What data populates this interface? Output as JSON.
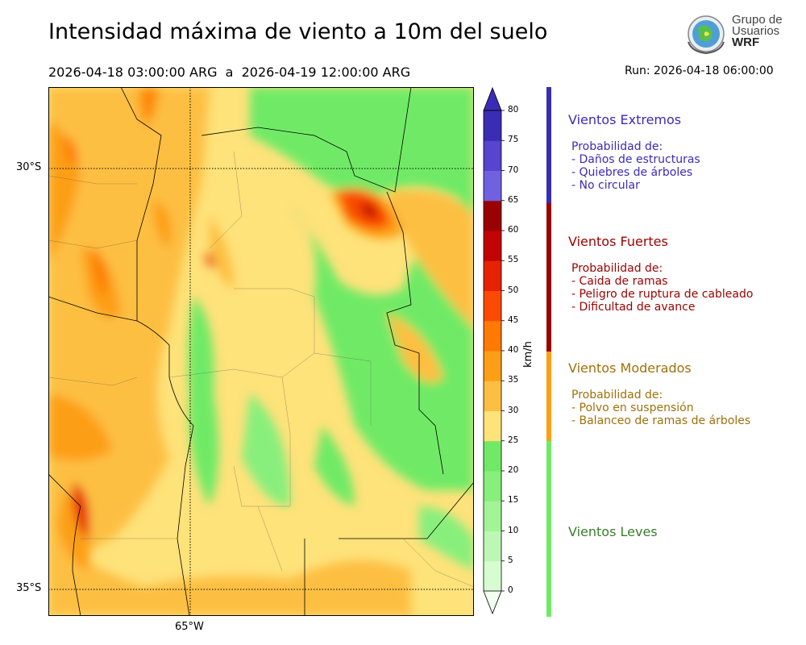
{
  "header": {
    "title": "Intensidad máxima de viento a 10m del suelo",
    "date_range": "2026-04-18 03:00:00 ARG  a  2026-04-19 12:00:00 ARG",
    "run": "Run: 2026-04-18 06:00:00"
  },
  "logo": {
    "line1": "Grupo de",
    "line2": "Usuarios",
    "line3": "WRF"
  },
  "map": {
    "lat_labels": [
      "30°S",
      "35°S"
    ],
    "lon_label": "65°W"
  },
  "colorbar": {
    "unit": "km/h",
    "ticks": [
      "0",
      "5",
      "10",
      "15",
      "20",
      "25",
      "30",
      "35",
      "40",
      "45",
      "50",
      "55",
      "60",
      "65",
      "70",
      "75",
      "80"
    ],
    "colors": [
      "#f2fef0",
      "#d8fcd2",
      "#bcf8b4",
      "#a2f497",
      "#88ef7c",
      "#70ea66",
      "#fee27a",
      "#fdbf43",
      "#fd9f16",
      "#fe7a03",
      "#fb4b02",
      "#e52201",
      "#c10402",
      "#9a0201",
      "#7061e0",
      "#5745cf",
      "#3b2cb5"
    ]
  },
  "categories": [
    {
      "title": "Vientos Extremos",
      "color": "#3b2cb5",
      "desc": "Probabilidad de:\n- Daños de estructuras\n- Quiebres de árboles\n- No circular"
    },
    {
      "title": "Vientos Fuertes",
      "color": "#9a0201",
      "desc": "Probabilidad de:\n- Caida de ramas\n- Peligro de ruptura de cableado\n- Dificultad de avance"
    },
    {
      "title": "Vientos Moderados",
      "color": "#a0700a",
      "desc": "Probabilidad de:\n- Polvo en suspensión\n- Balanceo de ramas de árboles"
    },
    {
      "title": "Vientos Leves",
      "color": "#3a7d2e",
      "desc": ""
    }
  ],
  "category_band_colors": [
    "#3b2cb5",
    "#9a0201",
    "#fd9f16",
    "#70ea66"
  ]
}
